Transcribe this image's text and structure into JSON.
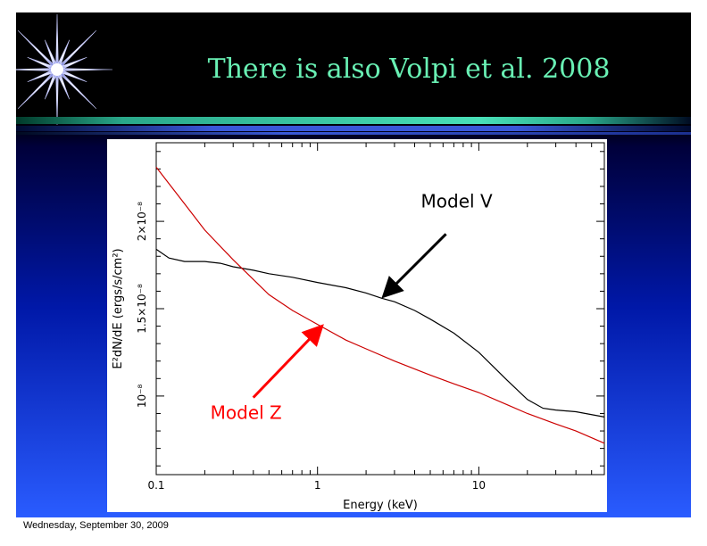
{
  "slide": {
    "title": "There is also Volpi et al. 2008",
    "footer": "Wednesday, September 30, 2009"
  },
  "colors": {
    "title": "#69f0b4",
    "model_v": "#000000",
    "model_z": "#cc0000",
    "annotation_z": "#ff0000"
  },
  "chart_data": {
    "type": "line",
    "xscale": "log",
    "xlim": [
      0.1,
      60
    ],
    "ylim": [
      5.5e-09,
      2.45e-08
    ],
    "xlabel": "Energy (keV)",
    "ylabel": "E²dN/dE (ergs/s/cm²)",
    "x_ticks": [
      {
        "value": 0.1,
        "label": "0.1"
      },
      {
        "value": 1,
        "label": "1"
      },
      {
        "value": 10,
        "label": "10"
      }
    ],
    "y_ticks": [
      {
        "value": 1e-08,
        "label": "10⁻⁸"
      },
      {
        "value": 1.5e-08,
        "label": "1.5×10⁻⁸"
      },
      {
        "value": 2e-08,
        "label": "2×10⁻⁸"
      }
    ],
    "series": [
      {
        "name": "Model V",
        "color": "#000000",
        "x": [
          0.1,
          0.12,
          0.15,
          0.2,
          0.25,
          0.3,
          0.4,
          0.5,
          0.7,
          1,
          1.5,
          2,
          2.5,
          3,
          4,
          5,
          7,
          10,
          15,
          20,
          25,
          30,
          40,
          60
        ],
        "y": [
          1.84e-08,
          1.79e-08,
          1.77e-08,
          1.77e-08,
          1.76e-08,
          1.74e-08,
          1.72e-08,
          1.7e-08,
          1.68e-08,
          1.65e-08,
          1.62e-08,
          1.59e-08,
          1.56e-08,
          1.54e-08,
          1.49e-08,
          1.44e-08,
          1.36e-08,
          1.25e-08,
          1.09e-08,
          9.8e-09,
          9.3e-09,
          9.2e-09,
          9.1e-09,
          8.8e-09
        ]
      },
      {
        "name": "Model Z",
        "color": "#cc0000",
        "x": [
          0.1,
          0.15,
          0.2,
          0.3,
          0.5,
          0.7,
          1,
          1.5,
          2,
          3,
          5,
          7,
          10,
          15,
          20,
          30,
          40,
          60
        ],
        "y": [
          2.31e-08,
          2.1e-08,
          1.95e-08,
          1.78e-08,
          1.58e-08,
          1.49e-08,
          1.41e-08,
          1.32e-08,
          1.27e-08,
          1.2e-08,
          1.12e-08,
          1.07e-08,
          1.02e-08,
          9.5e-09,
          9e-09,
          8.4e-09,
          8e-09,
          7.3e-09
        ]
      }
    ],
    "annotations": [
      {
        "text": "Model V",
        "color": "#000000",
        "points_to": {
          "x": 2.5,
          "y": 1.56e-08
        }
      },
      {
        "text": "Model Z",
        "color": "#ff0000",
        "points_to": {
          "x": 1,
          "y": 1.41e-08
        }
      }
    ]
  }
}
